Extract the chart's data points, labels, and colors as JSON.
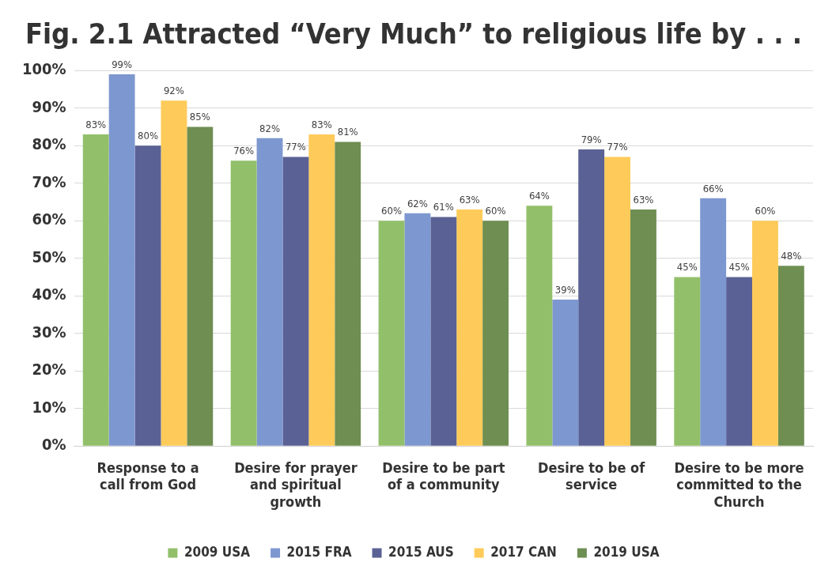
{
  "chart_data": {
    "type": "bar",
    "title": "Fig. 2.1 Attracted “Very Much” to religious life by . . .",
    "categories": [
      "Response to a call from God",
      "Desire for prayer and spiritual growth",
      "Desire to be part of a community",
      "Desire to be of service",
      "Desire to be more committed to the Church"
    ],
    "series": [
      {
        "name": "2009 USA",
        "color": "#92c06a",
        "values": [
          83,
          76,
          60,
          64,
          45
        ],
        "value_labels": [
          "83%",
          "76%",
          "60%",
          "64%",
          "45%"
        ]
      },
      {
        "name": "2015 FRA",
        "color": "#7d97d0",
        "values": [
          99,
          82,
          62,
          39,
          66
        ],
        "value_labels": [
          "99%",
          "82%",
          "62%",
          "39%",
          "66%"
        ]
      },
      {
        "name": "2015 AUS",
        "color": "#5a6194",
        "values": [
          80,
          77,
          61,
          79,
          45
        ],
        "value_labels": [
          "80%",
          "77%",
          "61%",
          "79%",
          "45%"
        ]
      },
      {
        "name": "2017 CAN",
        "color": "#fecb5a",
        "values": [
          92,
          83,
          63,
          77,
          60
        ],
        "value_labels": [
          "92%",
          "83%",
          "63%",
          "77%",
          "60%"
        ]
      },
      {
        "name": "2019 USA",
        "color": "#6e8e52",
        "values": [
          85,
          81,
          60,
          63,
          48
        ],
        "value_labels": [
          "85%",
          "81%",
          "60%",
          "63%",
          "48%"
        ]
      }
    ],
    "ylim": [
      0,
      100
    ],
    "yticks": [
      {
        "value": 0,
        "label": "0%"
      },
      {
        "value": 10,
        "label": "10%"
      },
      {
        "value": 20,
        "label": "20%"
      },
      {
        "value": 30,
        "label": "30%"
      },
      {
        "value": 40,
        "label": "40%"
      },
      {
        "value": 50,
        "label": "50%"
      },
      {
        "value": 60,
        "label": "60%"
      },
      {
        "value": 70,
        "label": "70%"
      },
      {
        "value": 80,
        "label": "80%"
      },
      {
        "value": 90,
        "label": "90%"
      },
      {
        "value": 100,
        "label": "100%"
      }
    ],
    "grid": "y",
    "legend": "bottom"
  }
}
